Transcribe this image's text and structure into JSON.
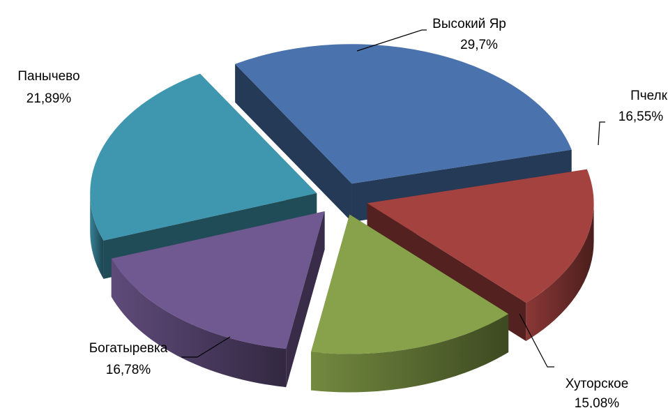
{
  "chart_data": {
    "type": "pie",
    "style": "3d-exploded",
    "title": "",
    "slices": [
      {
        "name": "Высокий Яр",
        "value": 29.7,
        "label": "29,7%",
        "color": "#4A73AD"
      },
      {
        "name": "Пчелка",
        "value": 16.55,
        "label": "16,55%",
        "color": "#A4423F"
      },
      {
        "name": "Хуторское",
        "value": 15.08,
        "label": "15,08%",
        "color": "#87A24A"
      },
      {
        "name": "Богатыревка",
        "value": 16.78,
        "label": "16,78%",
        "color": "#705890"
      },
      {
        "name": "Панычево",
        "value": 21.89,
        "label": "21,89%",
        "color": "#3F97AF"
      }
    ]
  }
}
